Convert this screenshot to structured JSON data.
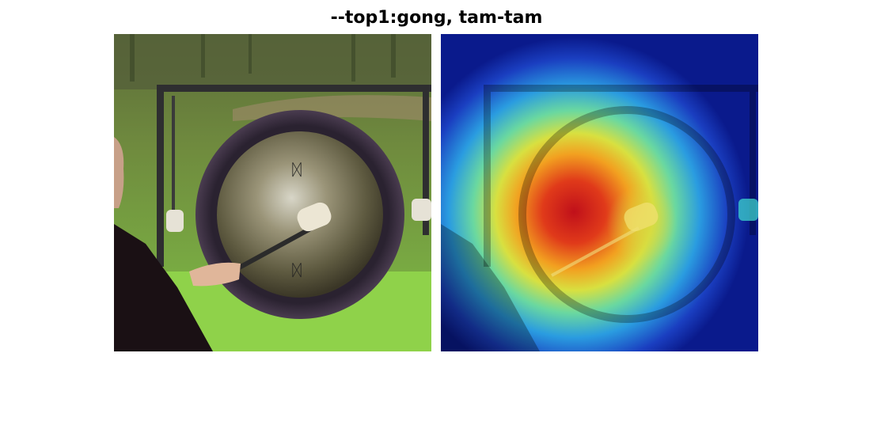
{
  "figure": {
    "title": "--top1:gong, tam-tam"
  },
  "panels": {
    "original": {
      "subject": "person striking a gong with a mallet on a grassy field"
    },
    "heatmap": {
      "subject": "Grad-CAM heatmap overlay of the same image",
      "hot_color": "#d0141e",
      "cold_color": "#0a1a8c"
    }
  }
}
